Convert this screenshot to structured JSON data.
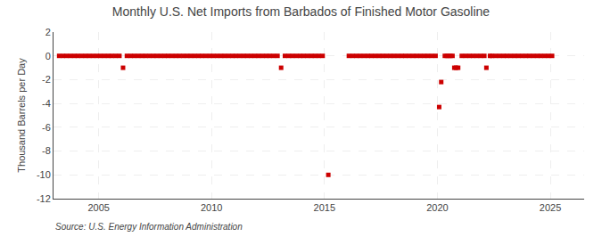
{
  "chart_data": {
    "type": "scatter",
    "title": "Monthly U.S. Net Imports from Barbados of Finished Motor Gasoline",
    "ylabel": "Thousand Barrels per Day",
    "annotations": [
      "Source: U.S. Energy Information Administration"
    ],
    "color": "#cc0000",
    "marker": "square",
    "grid": true,
    "xlim": [
      2003.0,
      2026.5
    ],
    "ylim": [
      -12,
      2
    ],
    "xticks": [
      2005,
      2010,
      2015,
      2020,
      2025
    ],
    "yticks": [
      2,
      0,
      -2,
      -4,
      -6,
      -8,
      -10,
      -12
    ],
    "x": [
      2003.25,
      2003.42,
      2003.58,
      2003.75,
      2003.92,
      2004.08,
      2004.25,
      2004.42,
      2004.58,
      2004.75,
      2004.92,
      2005.08,
      2005.25,
      2005.42,
      2005.58,
      2005.75,
      2005.92,
      2006.08,
      2006.25,
      2006.42,
      2006.58,
      2006.75,
      2006.92,
      2007.08,
      2007.25,
      2007.42,
      2007.58,
      2007.75,
      2007.92,
      2008.08,
      2008.25,
      2008.42,
      2008.58,
      2008.75,
      2008.92,
      2009.08,
      2009.25,
      2009.42,
      2009.58,
      2009.75,
      2009.92,
      2010.08,
      2010.25,
      2010.42,
      2010.58,
      2010.75,
      2010.92,
      2011.08,
      2011.25,
      2011.42,
      2011.58,
      2011.75,
      2011.92,
      2012.08,
      2012.25,
      2012.42,
      2012.58,
      2012.75,
      2012.92,
      2013.08,
      2013.25,
      2013.42,
      2013.58,
      2013.75,
      2013.92,
      2014.08,
      2014.25,
      2014.42,
      2014.58,
      2014.75,
      2014.92,
      2015.17,
      2016.08,
      2016.25,
      2016.42,
      2016.58,
      2016.75,
      2016.92,
      2017.08,
      2017.25,
      2017.42,
      2017.58,
      2017.75,
      2017.92,
      2018.08,
      2018.25,
      2018.42,
      2018.58,
      2018.75,
      2018.92,
      2019.08,
      2019.25,
      2019.42,
      2019.58,
      2019.75,
      2019.92,
      2020.08,
      2020.17,
      2020.33,
      2020.42,
      2020.5,
      2020.58,
      2020.67,
      2020.75,
      2020.83,
      2020.92,
      2021.08,
      2021.25,
      2021.42,
      2021.58,
      2021.75,
      2021.92,
      2022.08,
      2022.17,
      2022.33,
      2022.42,
      2022.58,
      2022.75,
      2022.92,
      2023.08,
      2023.25,
      2023.42,
      2023.58,
      2023.75,
      2023.92,
      2024.08,
      2024.25,
      2024.42,
      2024.58,
      2024.75,
      2024.92,
      2025.08
    ],
    "values": [
      0,
      0,
      0,
      0,
      0,
      0,
      0,
      0,
      0,
      0,
      0,
      0,
      0,
      0,
      0,
      0,
      0,
      -1.0,
      0,
      0,
      0,
      0,
      0,
      0,
      0,
      0,
      0,
      0,
      0,
      0,
      0,
      0,
      0,
      0,
      0,
      0,
      0,
      0,
      0,
      0,
      0,
      0,
      0,
      0,
      0,
      0,
      0,
      0,
      0,
      0,
      0,
      0,
      0,
      0,
      0,
      0,
      0,
      0,
      0,
      -1.0,
      0,
      0,
      0,
      0,
      0,
      0,
      0,
      0,
      0,
      0,
      0,
      -10.0,
      0,
      0,
      0,
      0,
      0,
      0,
      0,
      0,
      0,
      0,
      0,
      0,
      0,
      0,
      0,
      0,
      0,
      0,
      0,
      0,
      0,
      0,
      0,
      0,
      -4.3,
      -2.2,
      0,
      0,
      0,
      0,
      0,
      -1.0,
      -1.0,
      -1.0,
      0,
      0,
      0,
      0,
      0,
      0,
      0,
      -1.0,
      0,
      0,
      0,
      0,
      0,
      0,
      0,
      0,
      0,
      0,
      0,
      0,
      0,
      0,
      0,
      0,
      0,
      0
    ]
  }
}
